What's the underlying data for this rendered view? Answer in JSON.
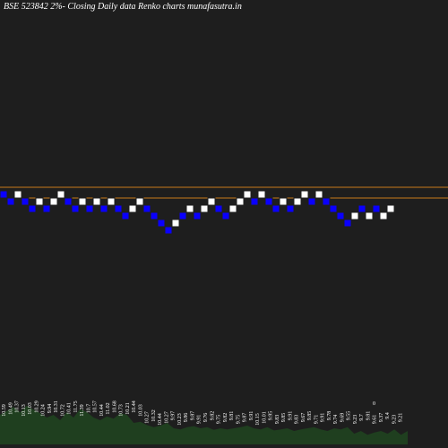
{
  "header": {
    "title": "BSE 523842  2%-  Closing Daily data  Renko  charts munafasutra.in"
  },
  "colors": {
    "background": "#1e1e1e",
    "up_brick": "#ffffff",
    "down_brick": "#0a00ff",
    "brick_outline": "#1e1e1e",
    "reference_line": "#c87a1a",
    "volume_bar": "#1f3f1f",
    "label_text": "#ffffff"
  },
  "chart_data": {
    "type": "renko",
    "brick_size_pct": 2,
    "bricks": [
      {
        "dir": "down",
        "level": 0
      },
      {
        "dir": "down",
        "level": -1
      },
      {
        "dir": "up",
        "level": 0
      },
      {
        "dir": "down",
        "level": -1
      },
      {
        "dir": "down",
        "level": -2
      },
      {
        "dir": "up",
        "level": -1
      },
      {
        "dir": "down",
        "level": -2
      },
      {
        "dir": "up",
        "level": -1
      },
      {
        "dir": "up",
        "level": 0
      },
      {
        "dir": "down",
        "level": -1
      },
      {
        "dir": "down",
        "level": -2
      },
      {
        "dir": "up",
        "level": -1
      },
      {
        "dir": "down",
        "level": -2
      },
      {
        "dir": "up",
        "level": -1
      },
      {
        "dir": "down",
        "level": -2
      },
      {
        "dir": "up",
        "level": -1
      },
      {
        "dir": "down",
        "level": -2
      },
      {
        "dir": "down",
        "level": -3
      },
      {
        "dir": "up",
        "level": -2
      },
      {
        "dir": "up",
        "level": -1
      },
      {
        "dir": "down",
        "level": -2
      },
      {
        "dir": "down",
        "level": -3
      },
      {
        "dir": "down",
        "level": -4
      },
      {
        "dir": "down",
        "level": -5
      },
      {
        "dir": "up",
        "level": -4
      },
      {
        "dir": "down",
        "level": -3
      },
      {
        "dir": "up",
        "level": -2
      },
      {
        "dir": "down",
        "level": -3
      },
      {
        "dir": "up",
        "level": -2
      },
      {
        "dir": "up",
        "level": -1
      },
      {
        "dir": "down",
        "level": -2
      },
      {
        "dir": "down",
        "level": -3
      },
      {
        "dir": "up",
        "level": -2
      },
      {
        "dir": "up",
        "level": -1
      },
      {
        "dir": "up",
        "level": 0
      },
      {
        "dir": "down",
        "level": -1
      },
      {
        "dir": "up",
        "level": 0
      },
      {
        "dir": "down",
        "level": -1
      },
      {
        "dir": "down",
        "level": -2
      },
      {
        "dir": "up",
        "level": -1
      },
      {
        "dir": "down",
        "level": -2
      },
      {
        "dir": "up",
        "level": -1
      },
      {
        "dir": "up",
        "level": 0
      },
      {
        "dir": "down",
        "level": -1
      },
      {
        "dir": "up",
        "level": 0
      },
      {
        "dir": "down",
        "level": -1
      },
      {
        "dir": "down",
        "level": -2
      },
      {
        "dir": "down",
        "level": -3
      },
      {
        "dir": "down",
        "level": -4
      },
      {
        "dir": "up",
        "level": -3
      },
      {
        "dir": "down",
        "level": -2
      },
      {
        "dir": "up",
        "level": -3
      },
      {
        "dir": "down",
        "level": -2
      },
      {
        "dir": "up",
        "level": -3
      },
      {
        "dir": "up",
        "level": -2
      }
    ],
    "reference_lines": [
      {
        "label": "upper",
        "value_level": 1.5
      },
      {
        "label": "lower",
        "value_level": 0
      }
    ],
    "volume_labels": [
      "10.59",
      "10.49",
      "10.37",
      "10.13",
      "10.03",
      "10.29",
      "10.24",
      "9.94",
      "10.31",
      "10.72",
      "10.41",
      "11.75",
      "11.39",
      "10.7",
      "10.57",
      "10.44",
      "11.02",
      "10.68",
      "10.73",
      "10.21",
      "10.44",
      "10.03",
      "10.27",
      "10.32",
      "10.44",
      "10.27",
      "9.97",
      "10.23",
      "9.86",
      "9.87",
      "9.91",
      "9.76",
      "9.82",
      "9.75",
      "9.82",
      "9.81",
      "9.75",
      "9.87",
      "9.91",
      "10.15",
      "10.01",
      "9.95",
      "9.83",
      "9.85",
      "9.91",
      "9.83",
      "9.67",
      "9.85",
      "9.71",
      "9.91",
      "9.78",
      "9.74",
      "9.69",
      "9.55",
      "9.23",
      "9.7",
      "9.81",
      "9.61",
      "9.37",
      "9.4",
      "9.23",
      "9.21"
    ],
    "volume_heights": [
      0.55,
      0.62,
      0.7,
      0.6,
      0.72,
      0.65,
      0.58,
      0.5,
      0.55,
      0.45,
      0.6,
      0.5,
      0.66,
      0.6,
      0.5,
      0.45,
      0.52,
      0.48,
      0.58,
      0.55,
      0.4,
      0.42,
      0.36,
      0.32,
      0.35,
      0.4,
      0.3,
      0.28,
      0.32,
      0.34,
      0.3,
      0.32,
      0.27,
      0.3,
      0.28,
      0.3,
      0.32,
      0.35,
      0.3,
      0.28,
      0.32,
      0.26,
      0.28,
      0.3,
      0.25,
      0.28,
      0.3,
      0.32,
      0.28,
      0.25,
      0.3,
      0.28,
      0.32,
      0.2,
      0.25,
      0.18,
      0.22,
      0.25,
      0.2,
      0.28,
      0.18,
      0.25
    ],
    "annotations": [
      "0"
    ]
  }
}
